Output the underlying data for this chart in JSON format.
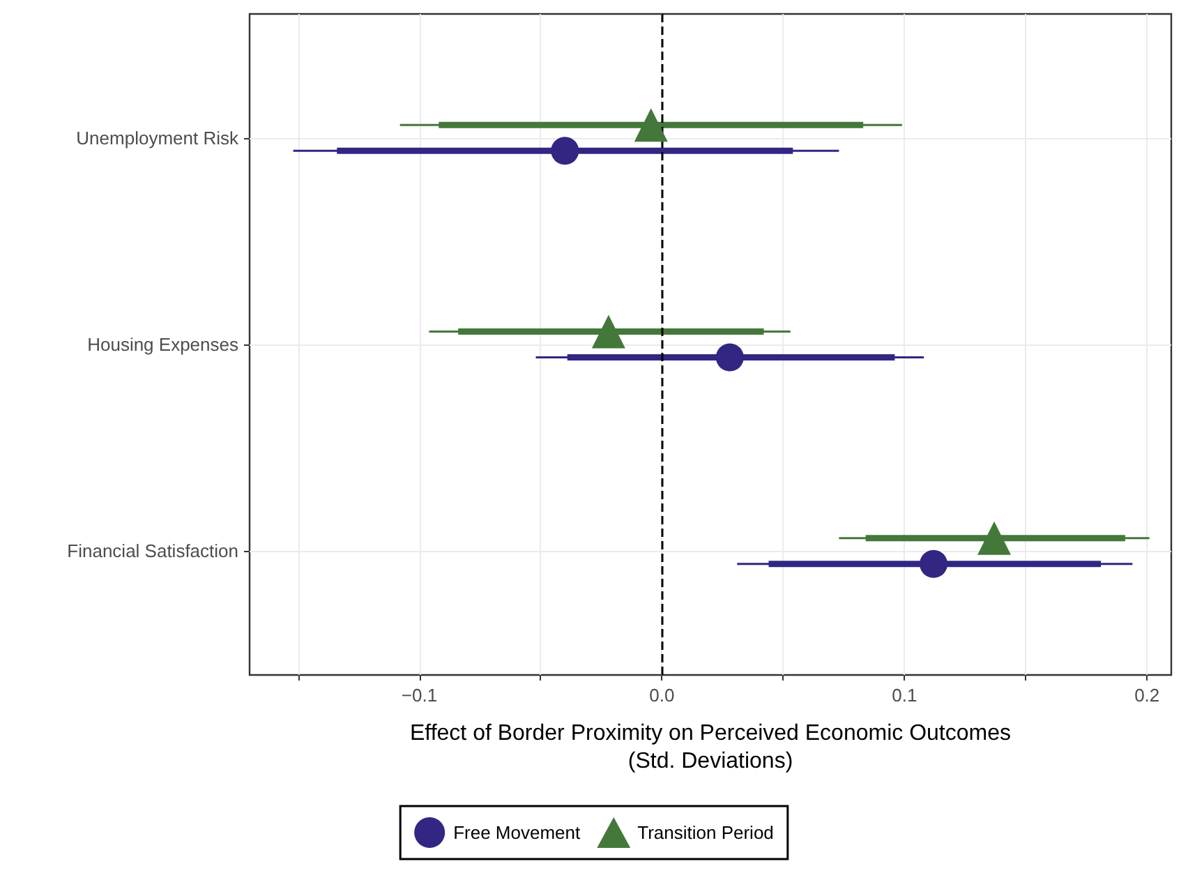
{
  "chart_data": {
    "type": "scatter",
    "orientation": "horizontal",
    "xlabel": "Effect of Border Proximity on Perceived Economic Outcomes\n(Std. Deviations)",
    "categories": [
      "Unemployment Risk",
      "Housing Expenses",
      "Financial Satisfaction"
    ],
    "xlim": [
      -0.17,
      0.21
    ],
    "xticks": [
      {
        "value": -0.15,
        "label": null
      },
      {
        "value": -0.1,
        "label": "−0.1"
      },
      {
        "value": -0.05,
        "label": null
      },
      {
        "value": 0,
        "label": "0.0"
      },
      {
        "value": 0.05,
        "label": null
      },
      {
        "value": 0.1,
        "label": "0.1"
      },
      {
        "value": 0.15,
        "label": null
      },
      {
        "value": 0.2,
        "label": "0.2"
      }
    ],
    "grid": true,
    "legend": "bottom",
    "ref_lines": [
      {
        "axis": "x",
        "value": 0,
        "color": "#000000",
        "line_style": "dashed"
      }
    ],
    "series": [
      {
        "name": "Free Movement",
        "color": "#312783",
        "marker": "circle",
        "values": [
          -0.04,
          0.028,
          0.112
        ],
        "errors": [
          [
            -0.152,
            0.073
          ],
          [
            -0.052,
            0.108
          ],
          [
            0.031,
            0.194
          ]
        ]
      },
      {
        "name": "Transition Period",
        "color": "#44783a",
        "marker": "triangle",
        "values": [
          -0.0045,
          -0.022,
          0.137
        ],
        "errors": [
          [
            -0.108,
            0.099
          ],
          [
            -0.096,
            0.053
          ],
          [
            0.073,
            0.201
          ]
        ]
      },
      {
        "type": "bar",
        "color": "#312783",
        "base": [
          -0.134,
          -0.039,
          0.044
        ],
        "values": [
          0.188,
          0.135,
          0.137
        ]
      },
      {
        "type": "bar",
        "color": "#44783a",
        "base": [
          -0.092,
          -0.084,
          0.084
        ],
        "values": [
          0.175,
          0.126,
          0.107
        ]
      }
    ]
  }
}
